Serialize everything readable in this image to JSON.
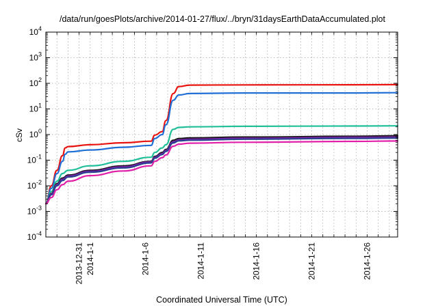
{
  "chart_data": {
    "type": "line",
    "title": "/data/run/goesPlots/archive/2014-01-27/flux/../bryn/31daysEarthDataAccumulated.plot",
    "xlabel": "Coordinated Universal Time (UTC)",
    "ylabel": "cSv",
    "yscale": "log",
    "ylim": [
      0.0001,
      10000
    ],
    "xlim": [
      "2013-12-28",
      "2014-01-28 18:00"
    ],
    "grid": true,
    "legend": "none",
    "y_ticks": [
      {
        "base": "10",
        "exp": "-4",
        "value": 0.0001
      },
      {
        "base": "10",
        "exp": "-3",
        "value": 0.001
      },
      {
        "base": "10",
        "exp": "-2",
        "value": 0.01
      },
      {
        "base": "10",
        "exp": "-1",
        "value": 0.1
      },
      {
        "base": "10",
        "exp": "0",
        "value": 1
      },
      {
        "base": "10",
        "exp": "1",
        "value": 10
      },
      {
        "base": "10",
        "exp": "2",
        "value": 100
      },
      {
        "base": "10",
        "exp": "3",
        "value": 1000
      },
      {
        "base": "10",
        "exp": "4",
        "value": 10000
      }
    ],
    "x_ticks": [
      {
        "label": "2013-12-31",
        "date": "2013-12-31"
      },
      {
        "label": "2014-1-1",
        "date": "2014-01-01"
      },
      {
        "label": "2014-1-6",
        "date": "2014-01-06"
      },
      {
        "label": "2014-1-11",
        "date": "2014-01-11"
      },
      {
        "label": "2014-1-16",
        "date": "2014-01-16"
      },
      {
        "label": "2014-1-21",
        "date": "2014-01-21"
      },
      {
        "label": "2014-1-26",
        "date": "2014-01-26"
      }
    ],
    "series": [
      {
        "color": "#e8130e",
        "x": [
          "2013-12-28 00:00",
          "2013-12-28 12:00",
          "2013-12-29 00:00",
          "2013-12-29 12:00",
          "2013-12-29 18:00",
          "2013-12-30 00:00",
          "2014-01-01 00:00",
          "2014-01-04 00:00",
          "2014-01-06 12:00",
          "2014-01-06 20:00",
          "2014-01-07 12:00",
          "2014-01-07 20:00",
          "2014-01-08 12:00",
          "2014-01-09 00:00",
          "2014-01-10 00:00",
          "2014-01-15 00:00",
          "2014-01-25 00:00",
          "2014-01-28 18:00"
        ],
        "y": [
          0.002,
          0.01,
          0.04,
          0.15,
          0.3,
          0.34,
          0.4,
          0.48,
          0.55,
          0.95,
          1.3,
          3.5,
          40,
          75,
          85,
          87,
          88,
          89
        ]
      },
      {
        "color": "#1f6fd6",
        "x": [
          "2013-12-28 00:00",
          "2013-12-28 12:00",
          "2013-12-29 00:00",
          "2013-12-29 12:00",
          "2013-12-29 18:00",
          "2013-12-30 00:00",
          "2014-01-01 00:00",
          "2014-01-04 00:00",
          "2014-01-06 12:00",
          "2014-01-06 20:00",
          "2014-01-07 12:00",
          "2014-01-07 20:00",
          "2014-01-08 12:00",
          "2014-01-09 00:00",
          "2014-01-10 00:00",
          "2014-01-15 00:00",
          "2014-01-25 00:00",
          "2014-01-28 18:00"
        ],
        "y": [
          0.002,
          0.008,
          0.03,
          0.09,
          0.17,
          0.21,
          0.25,
          0.32,
          0.38,
          0.7,
          1.0,
          2.4,
          22,
          35,
          40,
          42,
          42,
          43
        ]
      },
      {
        "color": "#1fbf9a",
        "x": [
          "2013-12-28 00:00",
          "2013-12-28 12:00",
          "2013-12-29 00:00",
          "2013-12-29 12:00",
          "2013-12-30 00:00",
          "2014-01-01 00:00",
          "2014-01-04 00:00",
          "2014-01-06 12:00",
          "2014-01-06 20:00",
          "2014-01-07 12:00",
          "2014-01-07 20:00",
          "2014-01-08 12:00",
          "2014-01-09 00:00",
          "2014-01-10 00:00",
          "2014-01-15 00:00",
          "2014-01-25 00:00",
          "2014-01-28 18:00"
        ],
        "y": [
          0.002,
          0.006,
          0.015,
          0.03,
          0.04,
          0.06,
          0.09,
          0.13,
          0.2,
          0.3,
          0.4,
          1.6,
          1.9,
          2.0,
          2.1,
          2.15,
          2.2
        ]
      },
      {
        "color": "#1a1a1a",
        "x": [
          "2013-12-28 00:00",
          "2013-12-28 12:00",
          "2013-12-29 00:00",
          "2013-12-29 12:00",
          "2013-12-30 00:00",
          "2014-01-01 00:00",
          "2014-01-04 00:00",
          "2014-01-06 12:00",
          "2014-01-06 20:00",
          "2014-01-07 12:00",
          "2014-01-07 20:00",
          "2014-01-08 12:00",
          "2014-01-09 00:00",
          "2014-01-10 00:00",
          "2014-01-15 00:00",
          "2014-01-25 00:00",
          "2014-01-28 18:00"
        ],
        "y": [
          0.002,
          0.005,
          0.012,
          0.02,
          0.026,
          0.04,
          0.06,
          0.09,
          0.14,
          0.2,
          0.26,
          0.6,
          0.7,
          0.74,
          0.8,
          0.86,
          0.9
        ]
      },
      {
        "color": "#7a1fa8",
        "x": [
          "2013-12-28 00:00",
          "2013-12-28 12:00",
          "2013-12-29 00:00",
          "2013-12-29 12:00",
          "2013-12-30 00:00",
          "2014-01-01 00:00",
          "2014-01-04 00:00",
          "2014-01-06 12:00",
          "2014-01-06 20:00",
          "2014-01-07 12:00",
          "2014-01-07 20:00",
          "2014-01-08 12:00",
          "2014-01-09 00:00",
          "2014-01-10 00:00",
          "2014-01-15 00:00",
          "2014-01-25 00:00",
          "2014-01-28 18:00"
        ],
        "y": [
          0.002,
          0.0048,
          0.011,
          0.018,
          0.024,
          0.037,
          0.055,
          0.085,
          0.13,
          0.18,
          0.24,
          0.52,
          0.62,
          0.66,
          0.72,
          0.78,
          0.8
        ]
      },
      {
        "color": "#2a3f8f",
        "x": [
          "2013-12-28 00:00",
          "2013-12-28 12:00",
          "2013-12-29 00:00",
          "2013-12-29 12:00",
          "2013-12-30 00:00",
          "2014-01-01 00:00",
          "2014-01-04 00:00",
          "2014-01-06 12:00",
          "2014-01-06 20:00",
          "2014-01-07 12:00",
          "2014-01-07 20:00",
          "2014-01-08 12:00",
          "2014-01-09 00:00",
          "2014-01-10 00:00",
          "2014-01-15 00:00",
          "2014-01-25 00:00",
          "2014-01-28 18:00"
        ],
        "y": [
          0.002,
          0.0045,
          0.01,
          0.016,
          0.022,
          0.034,
          0.05,
          0.078,
          0.12,
          0.165,
          0.22,
          0.47,
          0.57,
          0.6,
          0.66,
          0.71,
          0.73
        ]
      },
      {
        "color": "#e01ea8",
        "x": [
          "2013-12-28 00:00",
          "2013-12-28 12:00",
          "2013-12-29 00:00",
          "2013-12-29 12:00",
          "2013-12-30 00:00",
          "2014-01-01 00:00",
          "2014-01-04 00:00",
          "2014-01-06 12:00",
          "2014-01-06 20:00",
          "2014-01-07 12:00",
          "2014-01-07 20:00",
          "2014-01-08 12:00",
          "2014-01-09 00:00",
          "2014-01-10 00:00",
          "2014-01-15 00:00",
          "2014-01-25 00:00",
          "2014-01-28 18:00"
        ],
        "y": [
          0.002,
          0.0035,
          0.007,
          0.011,
          0.015,
          0.025,
          0.038,
          0.06,
          0.09,
          0.125,
          0.16,
          0.35,
          0.42,
          0.46,
          0.5,
          0.54,
          0.56
        ]
      }
    ]
  }
}
